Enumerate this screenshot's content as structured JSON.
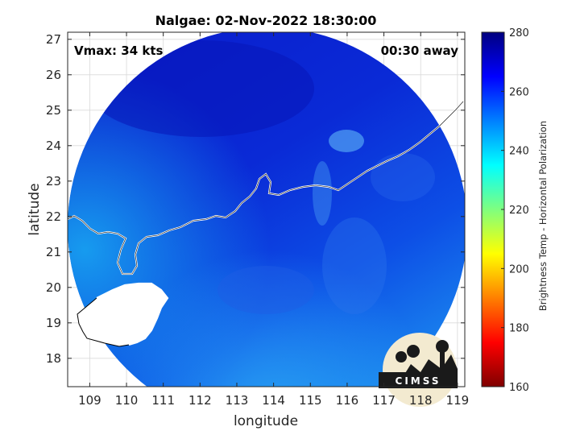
{
  "chart_data": {
    "type": "heatmap",
    "title": "Nalgae: 02-Nov-2022 18:30:00",
    "xlabel": "longitude",
    "ylabel": "latitude",
    "xlim": [
      108.4,
      119.2
    ],
    "ylim": [
      17.2,
      27.2
    ],
    "xticks": [
      109,
      110,
      111,
      112,
      113,
      114,
      115,
      116,
      117,
      118,
      119
    ],
    "yticks": [
      18,
      19,
      20,
      21,
      22,
      23,
      24,
      25,
      26,
      27
    ],
    "grid": true,
    "annotations": {
      "vmax": "Vmax: 34 kts",
      "time_offset": "00:30 away"
    },
    "colorbar": {
      "label": "Brightness Temp - Horizontal Polarization",
      "range": [
        160,
        280
      ],
      "ticks": [
        160,
        180,
        200,
        220,
        240,
        260,
        280
      ],
      "colormap": "jet"
    },
    "logo_text": "CIMSS"
  },
  "colors": {
    "background": "#ffffff",
    "grid": "#d9d9d9",
    "axis": "#262626",
    "coastline": "#ffffff",
    "land_outline": "#000000"
  }
}
